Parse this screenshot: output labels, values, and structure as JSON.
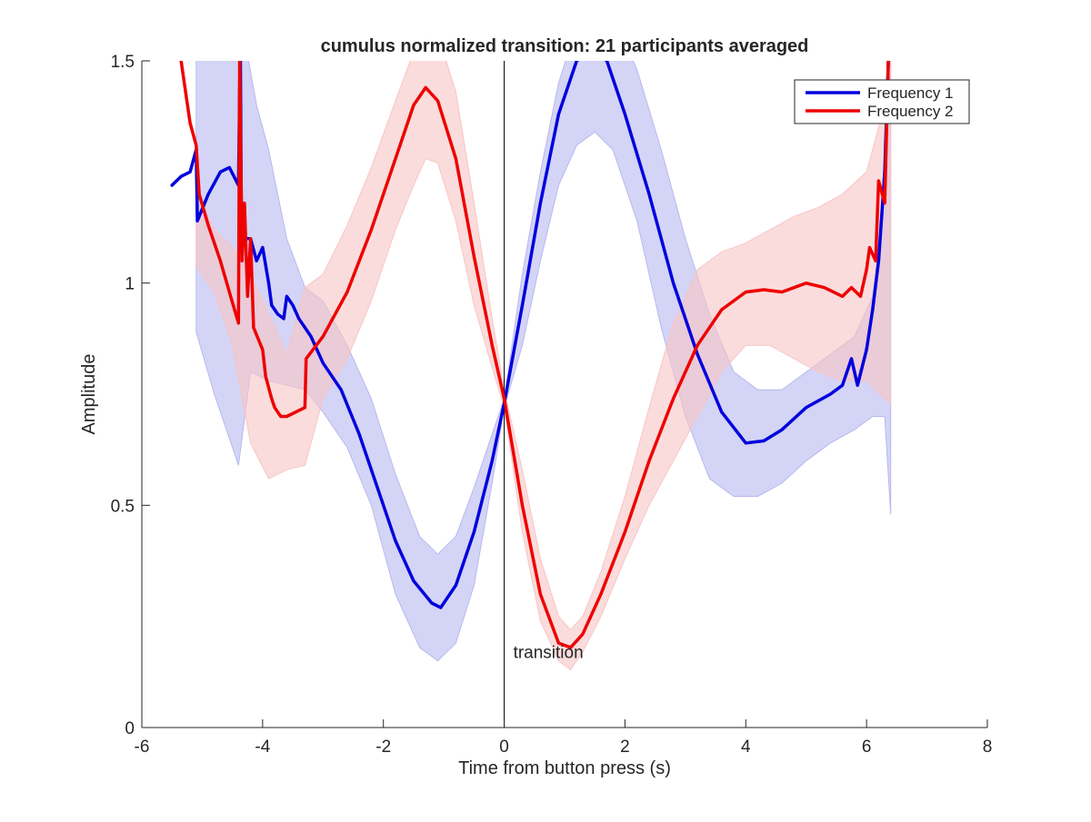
{
  "chart_data": {
    "type": "line",
    "title": "cumulus normalized transition: 21 participants averaged",
    "xlabel": "Time from button press (s)",
    "ylabel": "Amplitude",
    "xlim": [
      -6,
      8
    ],
    "ylim": [
      0,
      1.5
    ],
    "xticks": [
      -6,
      -4,
      -2,
      0,
      2,
      4,
      6,
      8
    ],
    "xtick_labels": [
      "-6",
      "-4",
      "-2",
      "0",
      "2",
      "4",
      "6",
      "8"
    ],
    "yticks": [
      0,
      0.5,
      1,
      1.5
    ],
    "ytick_labels": [
      "0",
      "0.5",
      "1",
      "1.5"
    ],
    "grid": false,
    "legend": {
      "position": "top-right"
    },
    "annotation": {
      "text": "transition",
      "x": 0,
      "y": 0.15
    },
    "series": [
      {
        "name": "Frequency 1",
        "color": "#0000dd",
        "band_color": "#b8b8f0",
        "mean": [
          [
            -5.5,
            1.22
          ],
          [
            -5.35,
            1.24
          ],
          [
            -5.2,
            1.25
          ],
          [
            -5.1,
            1.3
          ],
          [
            -5.08,
            1.14
          ],
          [
            -4.9,
            1.2
          ],
          [
            -4.7,
            1.25
          ],
          [
            -4.55,
            1.26
          ],
          [
            -4.4,
            1.22
          ],
          [
            -4.37,
            1.55
          ],
          [
            -4.35,
            1.1
          ],
          [
            -4.2,
            1.1
          ],
          [
            -4.1,
            1.05
          ],
          [
            -4.0,
            1.08
          ],
          [
            -3.9,
            1.0
          ],
          [
            -3.85,
            0.95
          ],
          [
            -3.75,
            0.93
          ],
          [
            -3.65,
            0.92
          ],
          [
            -3.6,
            0.97
          ],
          [
            -3.5,
            0.95
          ],
          [
            -3.4,
            0.92
          ],
          [
            -3.2,
            0.88
          ],
          [
            -3.0,
            0.82
          ],
          [
            -2.7,
            0.76
          ],
          [
            -2.4,
            0.66
          ],
          [
            -2.1,
            0.54
          ],
          [
            -1.8,
            0.42
          ],
          [
            -1.5,
            0.33
          ],
          [
            -1.2,
            0.28
          ],
          [
            -1.05,
            0.27
          ],
          [
            -0.8,
            0.32
          ],
          [
            -0.5,
            0.44
          ],
          [
            -0.2,
            0.6
          ],
          [
            0,
            0.73
          ],
          [
            0.3,
            0.95
          ],
          [
            0.6,
            1.18
          ],
          [
            0.9,
            1.38
          ],
          [
            1.2,
            1.5
          ],
          [
            1.4,
            1.53
          ],
          [
            1.7,
            1.5
          ],
          [
            2.0,
            1.38
          ],
          [
            2.4,
            1.2
          ],
          [
            2.8,
            1.0
          ],
          [
            3.2,
            0.84
          ],
          [
            3.6,
            0.71
          ],
          [
            4.0,
            0.64
          ],
          [
            4.3,
            0.645
          ],
          [
            4.6,
            0.67
          ],
          [
            5.0,
            0.72
          ],
          [
            5.4,
            0.75
          ],
          [
            5.6,
            0.77
          ],
          [
            5.75,
            0.83
          ],
          [
            5.85,
            0.77
          ],
          [
            6.0,
            0.85
          ],
          [
            6.1,
            0.94
          ],
          [
            6.2,
            1.05
          ],
          [
            6.3,
            1.25
          ],
          [
            6.36,
            1.5
          ]
        ],
        "upper": [
          [
            -5.1,
            1.6
          ],
          [
            -4.8,
            1.6
          ],
          [
            -4.5,
            1.6
          ],
          [
            -4.3,
            1.55
          ],
          [
            -4.1,
            1.4
          ],
          [
            -3.9,
            1.3
          ],
          [
            -3.6,
            1.1
          ],
          [
            -3.3,
            0.99
          ],
          [
            -3.0,
            0.96
          ],
          [
            -2.6,
            0.86
          ],
          [
            -2.2,
            0.74
          ],
          [
            -1.8,
            0.57
          ],
          [
            -1.4,
            0.43
          ],
          [
            -1.1,
            0.39
          ],
          [
            -0.8,
            0.43
          ],
          [
            -0.5,
            0.54
          ],
          [
            -0.2,
            0.66
          ],
          [
            0,
            0.74
          ],
          [
            0.3,
            1.02
          ],
          [
            0.6,
            1.25
          ],
          [
            0.9,
            1.45
          ],
          [
            1.2,
            1.58
          ],
          [
            1.5,
            1.62
          ],
          [
            1.8,
            1.6
          ],
          [
            2.2,
            1.48
          ],
          [
            2.6,
            1.3
          ],
          [
            3.0,
            1.1
          ],
          [
            3.4,
            0.93
          ],
          [
            3.8,
            0.8
          ],
          [
            4.2,
            0.76
          ],
          [
            4.6,
            0.76
          ],
          [
            5.0,
            0.8
          ],
          [
            5.4,
            0.84
          ],
          [
            5.8,
            0.88
          ],
          [
            6.1,
            0.97
          ],
          [
            6.3,
            1.2
          ],
          [
            6.4,
            1.6
          ]
        ],
        "lower": [
          [
            -5.1,
            0.89
          ],
          [
            -4.8,
            0.75
          ],
          [
            -4.4,
            0.59
          ],
          [
            -4.2,
            0.8
          ],
          [
            -3.9,
            0.78
          ],
          [
            -3.6,
            0.77
          ],
          [
            -3.3,
            0.76
          ],
          [
            -3.0,
            0.71
          ],
          [
            -2.6,
            0.63
          ],
          [
            -2.2,
            0.5
          ],
          [
            -1.8,
            0.3
          ],
          [
            -1.4,
            0.18
          ],
          [
            -1.1,
            0.15
          ],
          [
            -0.8,
            0.19
          ],
          [
            -0.5,
            0.32
          ],
          [
            -0.2,
            0.55
          ],
          [
            0,
            0.72
          ],
          [
            0.3,
            0.86
          ],
          [
            0.6,
            1.05
          ],
          [
            0.9,
            1.22
          ],
          [
            1.2,
            1.31
          ],
          [
            1.5,
            1.34
          ],
          [
            1.8,
            1.3
          ],
          [
            2.2,
            1.14
          ],
          [
            2.6,
            0.9
          ],
          [
            3.0,
            0.7
          ],
          [
            3.4,
            0.56
          ],
          [
            3.8,
            0.52
          ],
          [
            4.2,
            0.52
          ],
          [
            4.6,
            0.55
          ],
          [
            5.0,
            0.6
          ],
          [
            5.4,
            0.64
          ],
          [
            5.8,
            0.67
          ],
          [
            6.1,
            0.7
          ],
          [
            6.3,
            0.7
          ],
          [
            6.4,
            0.48
          ]
        ]
      },
      {
        "name": "Frequency 2",
        "color": "#ee0000",
        "band_color": "#f8c4c4",
        "mean": [
          [
            -5.35,
            1.5
          ],
          [
            -5.2,
            1.36
          ],
          [
            -5.1,
            1.31
          ],
          [
            -5.05,
            1.2
          ],
          [
            -4.9,
            1.13
          ],
          [
            -4.7,
            1.05
          ],
          [
            -4.55,
            0.98
          ],
          [
            -4.4,
            0.91
          ],
          [
            -4.38,
            1.5
          ],
          [
            -4.34,
            1.05
          ],
          [
            -4.3,
            1.18
          ],
          [
            -4.25,
            0.97
          ],
          [
            -4.2,
            1.1
          ],
          [
            -4.15,
            0.9
          ],
          [
            -4.0,
            0.85
          ],
          [
            -3.95,
            0.79
          ],
          [
            -3.85,
            0.74
          ],
          [
            -3.8,
            0.72
          ],
          [
            -3.7,
            0.7
          ],
          [
            -3.6,
            0.7
          ],
          [
            -3.3,
            0.72
          ],
          [
            -3.28,
            0.83
          ],
          [
            -3.0,
            0.88
          ],
          [
            -2.6,
            0.98
          ],
          [
            -2.2,
            1.12
          ],
          [
            -1.8,
            1.28
          ],
          [
            -1.5,
            1.4
          ],
          [
            -1.3,
            1.44
          ],
          [
            -1.1,
            1.41
          ],
          [
            -0.8,
            1.28
          ],
          [
            -0.5,
            1.06
          ],
          [
            -0.2,
            0.86
          ],
          [
            0,
            0.74
          ],
          [
            0.3,
            0.5
          ],
          [
            0.6,
            0.3
          ],
          [
            0.9,
            0.19
          ],
          [
            1.1,
            0.18
          ],
          [
            1.3,
            0.21
          ],
          [
            1.6,
            0.3
          ],
          [
            2.0,
            0.44
          ],
          [
            2.4,
            0.6
          ],
          [
            2.8,
            0.74
          ],
          [
            3.2,
            0.86
          ],
          [
            3.6,
            0.94
          ],
          [
            4.0,
            0.98
          ],
          [
            4.3,
            0.985
          ],
          [
            4.6,
            0.98
          ],
          [
            5.0,
            1.0
          ],
          [
            5.3,
            0.99
          ],
          [
            5.6,
            0.97
          ],
          [
            5.75,
            0.99
          ],
          [
            5.9,
            0.97
          ],
          [
            6.0,
            1.03
          ],
          [
            6.05,
            1.08
          ],
          [
            6.15,
            1.05
          ],
          [
            6.2,
            1.23
          ],
          [
            6.3,
            1.18
          ],
          [
            6.36,
            1.5
          ]
        ],
        "upper": [
          [
            -5.1,
            1.2
          ],
          [
            -4.8,
            1.12
          ],
          [
            -4.5,
            1.08
          ],
          [
            -4.2,
            1.02
          ],
          [
            -3.9,
            0.93
          ],
          [
            -3.6,
            0.84
          ],
          [
            -3.3,
            0.99
          ],
          [
            -3.0,
            1.02
          ],
          [
            -2.6,
            1.13
          ],
          [
            -2.2,
            1.26
          ],
          [
            -1.8,
            1.41
          ],
          [
            -1.5,
            1.52
          ],
          [
            -1.3,
            1.57
          ],
          [
            -1.1,
            1.56
          ],
          [
            -0.8,
            1.43
          ],
          [
            -0.5,
            1.18
          ],
          [
            -0.2,
            0.92
          ],
          [
            0,
            0.76
          ],
          [
            0.3,
            0.58
          ],
          [
            0.6,
            0.38
          ],
          [
            0.9,
            0.25
          ],
          [
            1.1,
            0.22
          ],
          [
            1.3,
            0.25
          ],
          [
            1.6,
            0.35
          ],
          [
            2.0,
            0.52
          ],
          [
            2.4,
            0.72
          ],
          [
            2.8,
            0.91
          ],
          [
            3.2,
            1.03
          ],
          [
            3.6,
            1.07
          ],
          [
            4.0,
            1.09
          ],
          [
            4.4,
            1.12
          ],
          [
            4.8,
            1.15
          ],
          [
            5.2,
            1.17
          ],
          [
            5.6,
            1.2
          ],
          [
            6.0,
            1.25
          ],
          [
            6.3,
            1.4
          ],
          [
            6.4,
            1.6
          ]
        ],
        "lower": [
          [
            -5.1,
            1.04
          ],
          [
            -4.8,
            0.98
          ],
          [
            -4.5,
            0.86
          ],
          [
            -4.2,
            0.64
          ],
          [
            -3.9,
            0.56
          ],
          [
            -3.6,
            0.58
          ],
          [
            -3.3,
            0.59
          ],
          [
            -3.0,
            0.74
          ],
          [
            -2.6,
            0.83
          ],
          [
            -2.2,
            0.96
          ],
          [
            -1.8,
            1.12
          ],
          [
            -1.5,
            1.22
          ],
          [
            -1.3,
            1.28
          ],
          [
            -1.1,
            1.27
          ],
          [
            -0.8,
            1.14
          ],
          [
            -0.5,
            0.95
          ],
          [
            -0.2,
            0.81
          ],
          [
            0,
            0.72
          ],
          [
            0.3,
            0.44
          ],
          [
            0.6,
            0.24
          ],
          [
            0.9,
            0.15
          ],
          [
            1.1,
            0.13
          ],
          [
            1.3,
            0.17
          ],
          [
            1.6,
            0.25
          ],
          [
            2.0,
            0.38
          ],
          [
            2.4,
            0.5
          ],
          [
            2.8,
            0.6
          ],
          [
            3.2,
            0.7
          ],
          [
            3.6,
            0.8
          ],
          [
            4.0,
            0.86
          ],
          [
            4.4,
            0.86
          ],
          [
            4.8,
            0.83
          ],
          [
            5.2,
            0.8
          ],
          [
            5.6,
            0.78
          ],
          [
            6.0,
            0.78
          ],
          [
            6.3,
            0.74
          ],
          [
            6.4,
            0.73
          ]
        ]
      }
    ]
  }
}
